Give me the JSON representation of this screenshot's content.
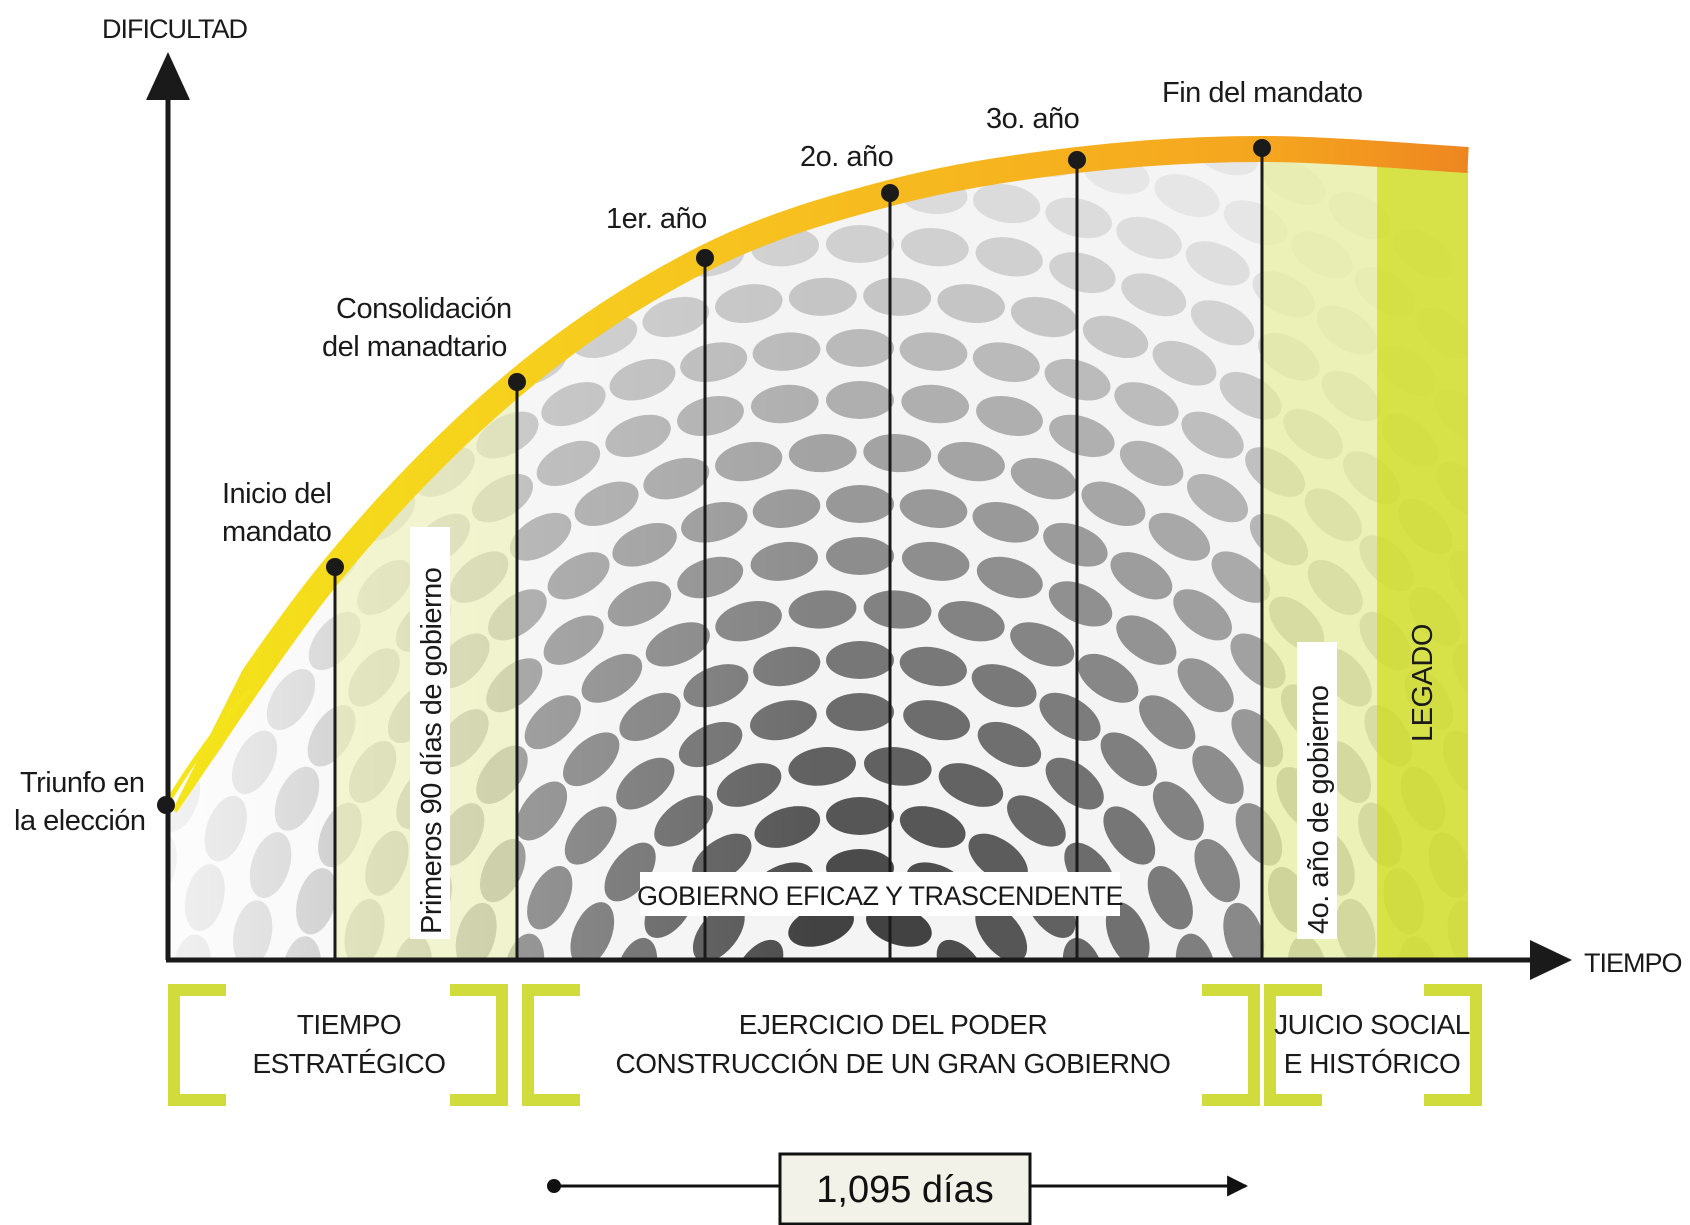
{
  "axes": {
    "y_label": "DIFICULTAD",
    "x_label": "TIEMPO"
  },
  "milestones": {
    "triunfo": [
      "Triunfo en",
      "la elección"
    ],
    "inicio": [
      "Inicio del",
      "mandato"
    ],
    "consolidacion": [
      "Consolidación",
      "del manadtario"
    ],
    "primer_anio": "1er. año",
    "segundo_anio": "2o. año",
    "tercer_anio": "3o. año",
    "fin": "Fin del mandato"
  },
  "vertical_labels": {
    "primeros_90": "Primeros 90 días de gobierno",
    "cuarto_anio": "4o. año de gobierno",
    "legado": "LEGADO"
  },
  "band_label": "GOBIERNO EFICAZ Y TRASCENDENTE",
  "phases": {
    "tiempo": [
      "TIEMPO",
      "ESTRATÉGICO"
    ],
    "ejercicio": [
      "EJERCICIO DEL PODER",
      "CONSTRUCCIÓN DE UN GRAN GOBIERNO"
    ],
    "juicio": [
      "JUICIO SOCIAL",
      "E HISTÓRICO"
    ]
  },
  "duration": "1,095 días",
  "colors": {
    "axis": "#1a1a1a",
    "curve_start": "#f2dd1e",
    "curve_mid": "#f6b51e",
    "curve_end": "#f08a1c",
    "bracket": "#cfdc3c",
    "legado": "#d4df3a",
    "light_green": "#eef2b4"
  }
}
